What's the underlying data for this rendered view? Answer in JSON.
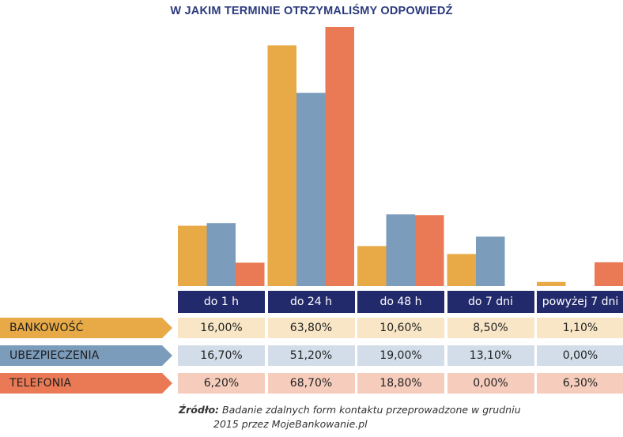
{
  "colors": {
    "accent": "#2b3a7e",
    "header_bg": "#232a6b",
    "series": [
      "#e8aa46",
      "#7b9cbb",
      "#e97a55"
    ],
    "cell_bg": [
      "#f8e6c6",
      "#d2dde9",
      "#f6cdbc"
    ]
  },
  "chart_data": {
    "type": "bar",
    "title": "W JAKIM TERMINIE OTRZYMALIŚMY ODPOWIEDŹ",
    "categories": [
      "do 1 h",
      "do 24 h",
      "do 48 h",
      "do 7 dni",
      "powyżej 7 dni"
    ],
    "series": [
      {
        "name": "BANKOWOŚĆ",
        "values": [
          16.0,
          63.8,
          10.6,
          8.5,
          1.1
        ],
        "labels": [
          "16,00%",
          "63,80%",
          "10,60%",
          "8,50%",
          "1,10%"
        ]
      },
      {
        "name": "UBEZPIECZENIA",
        "values": [
          16.7,
          51.2,
          19.0,
          13.1,
          0.0
        ],
        "labels": [
          "16,70%",
          "51,20%",
          "19,00%",
          "13,10%",
          "0,00%"
        ]
      },
      {
        "name": "TELEFONIA",
        "values": [
          6.2,
          68.7,
          18.8,
          0.0,
          6.3
        ],
        "labels": [
          "6,20%",
          "68,70%",
          "18,80%",
          "0,00%",
          "6,30%"
        ]
      }
    ],
    "ylim": [
      0,
      68.7
    ],
    "grid": false,
    "legend": "table-left"
  },
  "source": {
    "label": "Źródło:",
    "text_line1": "Badanie zdalnych form kontaktu przeprowadzone w grudniu",
    "text_line2": "2015 przez MojeBankowanie.pl"
  }
}
